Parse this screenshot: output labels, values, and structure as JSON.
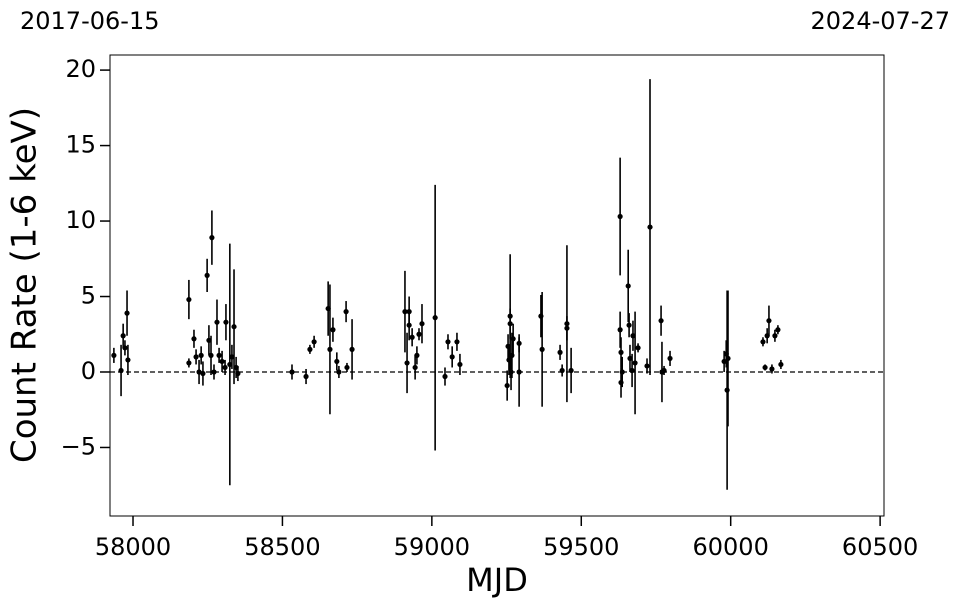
{
  "chart_data": {
    "type": "scatter",
    "top_left_label": "2017-06-15",
    "top_right_label": "2024-07-27",
    "x_label": "MJD",
    "y_label": "Count Rate (1-6 keV)",
    "xlim": [
      57923,
      60513
    ],
    "ylim": [
      -9.54,
      21
    ],
    "xticks": [
      58000,
      58500,
      59000,
      59500,
      60000,
      60500
    ],
    "yticks": [
      {
        "value": -5,
        "label": "−5"
      },
      0,
      5,
      10,
      15,
      20
    ],
    "hline": 0,
    "grid": false,
    "series": [
      {
        "color": "#000000",
        "x": [
          57936,
          57960,
          57967,
          57973,
          57980,
          57983,
          58187,
          58187,
          58204,
          58211,
          58221,
          58228,
          58234,
          58248,
          58254,
          58261,
          58264,
          58271,
          58281,
          58288,
          58298,
          58308,
          58311,
          58324,
          58331,
          58338,
          58345,
          58351,
          58532,
          58579,
          58592,
          58606,
          58653,
          58659,
          58669,
          58682,
          58689,
          58713,
          58716,
          58733,
          58910,
          58917,
          58924,
          58924,
          58934,
          58944,
          58950,
          58957,
          58967,
          59011,
          59044,
          59054,
          59068,
          59084,
          59094,
          59252,
          59255,
          59258,
          59262,
          59262,
          59265,
          59268,
          59272,
          59292,
          59292,
          59365,
          59369,
          59429,
          59436,
          59452,
          59452,
          59466,
          59630,
          59630,
          59633,
          59637,
          59633,
          59657,
          59660,
          59663,
          59670,
          59673,
          59680,
          59690,
          59720,
          59730,
          59767,
          59770,
          59777,
          59797,
          59978,
          59985,
          59988,
          59991,
          60108,
          60115,
          60122,
          60128,
          60138,
          60148,
          60158,
          60168
        ],
        "values": [
          1.1,
          0.1,
          2.4,
          1.6,
          3.9,
          0.8,
          4.8,
          0.6,
          2.2,
          1.0,
          0.0,
          1.1,
          -0.1,
          6.4,
          2.1,
          1.1,
          8.9,
          0.0,
          3.3,
          1.1,
          0.7,
          0.3,
          3.3,
          0.5,
          1.0,
          3.0,
          0.3,
          -0.1,
          0.0,
          -0.3,
          1.5,
          2.0,
          4.2,
          1.5,
          2.8,
          0.7,
          0.0,
          4.0,
          0.3,
          1.5,
          4.0,
          0.6,
          3.1,
          4.0,
          2.3,
          0.3,
          1.1,
          2.5,
          3.2,
          3.6,
          -0.3,
          2.0,
          1.0,
          2.0,
          0.5,
          -0.9,
          1.7,
          0.8,
          3.7,
          3.2,
          0.0,
          1.1,
          2.2,
          1.9,
          0.0,
          3.7,
          1.5,
          1.3,
          0.1,
          3.2,
          2.9,
          0.1,
          10.3,
          2.8,
          1.3,
          0.0,
          -0.7,
          5.7,
          3.1,
          0.9,
          0.1,
          2.4,
          0.6,
          1.6,
          0.4,
          9.6,
          3.4,
          0.0,
          0.1,
          0.9,
          0.7,
          1.2,
          -1.2,
          0.9,
          2.0,
          0.3,
          2.4,
          3.4,
          0.2,
          2.4,
          2.8,
          0.5
        ],
        "errors": [
          0.5,
          1.7,
          0.8,
          0.5,
          1.5,
          1.0,
          1.3,
          0.3,
          0.6,
          0.5,
          0.8,
          0.6,
          0.8,
          1.1,
          1.0,
          1.3,
          1.8,
          0.5,
          1.5,
          0.5,
          0.7,
          0.5,
          1.2,
          8.0,
          0.8,
          3.8,
          0.7,
          0.5,
          0.5,
          0.5,
          0.3,
          0.4,
          1.8,
          4.3,
          0.8,
          0.6,
          0.4,
          0.7,
          0.3,
          2.0,
          2.7,
          2.0,
          1.0,
          1.0,
          0.6,
          0.8,
          0.6,
          0.4,
          1.3,
          8.8,
          0.6,
          0.5,
          0.7,
          0.6,
          0.7,
          1.0,
          0.8,
          1.0,
          4.1,
          1.0,
          1.2,
          1.5,
          1.0,
          0.6,
          2.3,
          1.4,
          3.8,
          0.5,
          0.4,
          5.2,
          0.8,
          1.5,
          3.9,
          1.2,
          1.0,
          1.0,
          1.0,
          2.4,
          0.8,
          0.9,
          1.1,
          1.0,
          3.4,
          0.3,
          0.5,
          9.8,
          1.0,
          2.0,
          0.3,
          0.5,
          0.7,
          0.9,
          6.6,
          4.5,
          0.3,
          0.2,
          0.5,
          1.0,
          0.3,
          0.4,
          0.3,
          0.3
        ]
      }
    ]
  }
}
